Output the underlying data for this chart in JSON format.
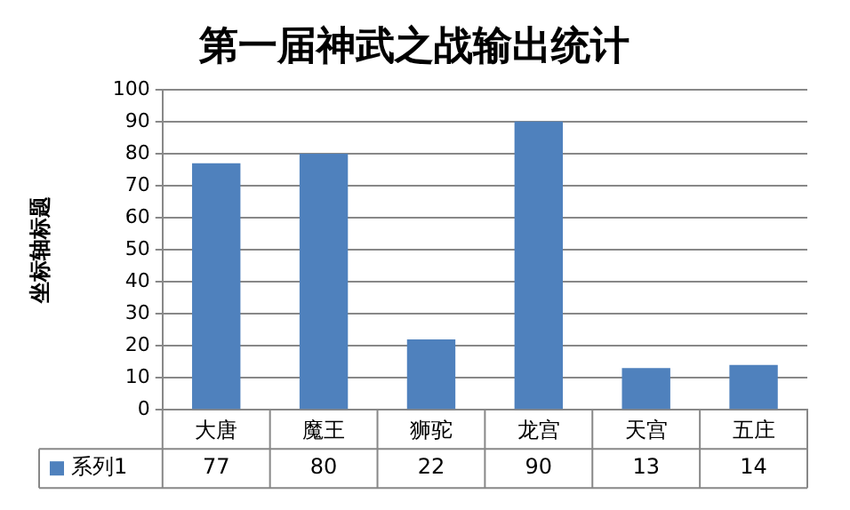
{
  "chart_data": {
    "type": "bar",
    "title": "第一届神武之战输出统计",
    "ylabel": "坐标轴标题",
    "categories": [
      "大唐",
      "魔王",
      "狮驼",
      "龙宫",
      "天宫",
      "五庄"
    ],
    "series": [
      {
        "name": "系列1",
        "color": "#4f81bd",
        "values": [
          77,
          80,
          22,
          90,
          13,
          14
        ]
      }
    ],
    "ylim": [
      0,
      100
    ],
    "yticks": [
      0,
      10,
      20,
      30,
      40,
      50,
      60,
      70,
      80,
      90,
      100
    ],
    "grid": "y",
    "legend": "bottom",
    "data_labels": true
  }
}
